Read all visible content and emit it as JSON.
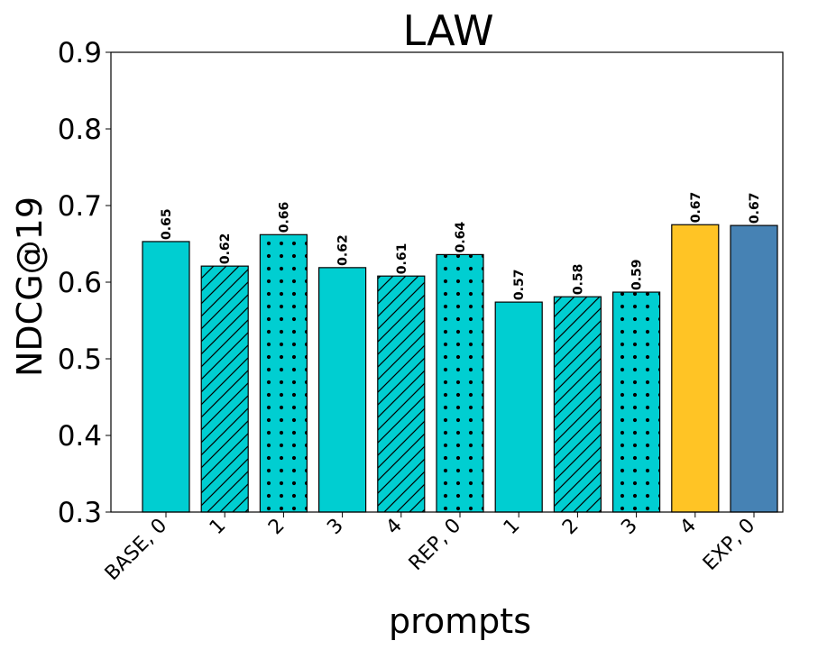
{
  "chart_data": {
    "type": "bar",
    "title": "LAW",
    "xlabel": "prompts",
    "ylabel": "NDCG@19",
    "ylim": [
      0.3,
      0.9
    ],
    "yticks": [
      "0.3",
      "0.4",
      "0.5",
      "0.6",
      "0.7",
      "0.8",
      "0.9"
    ],
    "categories": [
      "BASE, 0",
      "1",
      "2",
      "3",
      "4",
      "REP, 0",
      "1",
      "2",
      "3",
      "4",
      "EXP, 0"
    ],
    "values": [
      0.653,
      0.621,
      0.662,
      0.619,
      0.608,
      0.636,
      0.574,
      0.581,
      0.587,
      0.675,
      0.674
    ],
    "value_labels": [
      "0.65",
      "0.62",
      "0.66",
      "0.62",
      "0.61",
      "0.64",
      "0.57",
      "0.58",
      "0.59",
      "0.67",
      "0.67"
    ],
    "colors": [
      "#00CED1",
      "#00CED1",
      "#00CED1",
      "#00CED1",
      "#00CED1",
      "#00CED1",
      "#00CED1",
      "#00CED1",
      "#00CED1",
      "#FFC425",
      "#4682B4"
    ],
    "hatches": [
      "none",
      "diagonal",
      "dots",
      "none",
      "diagonal",
      "dots",
      "none",
      "diagonal",
      "dots",
      "none",
      "none"
    ],
    "grid": false,
    "legend": "none"
  }
}
